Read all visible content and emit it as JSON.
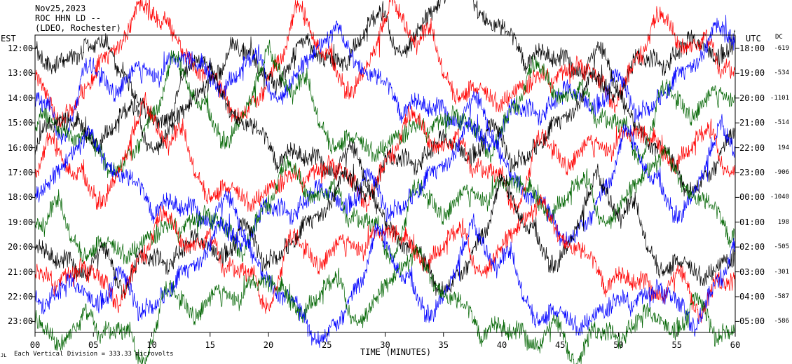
{
  "header": {
    "date": "Nov25,2023",
    "station": "ROC HHN LD --",
    "network": "(LDEO, Rochester)"
  },
  "left_axis_title": "EST",
  "right_axis_title": "UTC",
  "dc_title": "DC",
  "footer": {
    "scale_text": "Each Vertical Division =  333.33 microvolts",
    "corner_mark": "JL"
  },
  "colors": {
    "black": "#000000",
    "red": "#ff0000",
    "blue": "#0000ff",
    "green": "#006400"
  },
  "chart_data": {
    "type": "line",
    "xlabel": "TIME (MINUTES)",
    "xlim": [
      0,
      60
    ],
    "x_ticks": [
      "00",
      "05",
      "10",
      "15",
      "20",
      "25",
      "30",
      "35",
      "40",
      "45",
      "50",
      "55",
      "60"
    ],
    "rows": [
      {
        "est": "12:00",
        "utc": "18:00",
        "dc": "-619",
        "color": "black"
      },
      {
        "est": "13:00",
        "utc": "19:00",
        "dc": "-534",
        "color": "red"
      },
      {
        "est": "14:00",
        "utc": "20:00",
        "dc": "-1101",
        "color": "blue"
      },
      {
        "est": "15:00",
        "utc": "21:00",
        "dc": "-514",
        "color": "green"
      },
      {
        "est": "16:00",
        "utc": "22:00",
        "dc": "194",
        "color": "black"
      },
      {
        "est": "17:00",
        "utc": "23:00",
        "dc": "-906",
        "color": "red"
      },
      {
        "est": "18:00",
        "utc": "00:00",
        "dc": "-1040",
        "color": "blue"
      },
      {
        "est": "19:00",
        "utc": "01:00",
        "dc": "198",
        "color": "green"
      },
      {
        "est": "20:00",
        "utc": "02:00",
        "dc": "-505",
        "color": "black"
      },
      {
        "est": "21:00",
        "utc": "03:00",
        "dc": "-301",
        "color": "red"
      },
      {
        "est": "22:00",
        "utc": "04:00",
        "dc": "-587",
        "color": "blue"
      },
      {
        "est": "23:00",
        "utc": "05:00",
        "dc": "-586",
        "color": "green"
      }
    ],
    "grid": false,
    "legend": "none"
  }
}
